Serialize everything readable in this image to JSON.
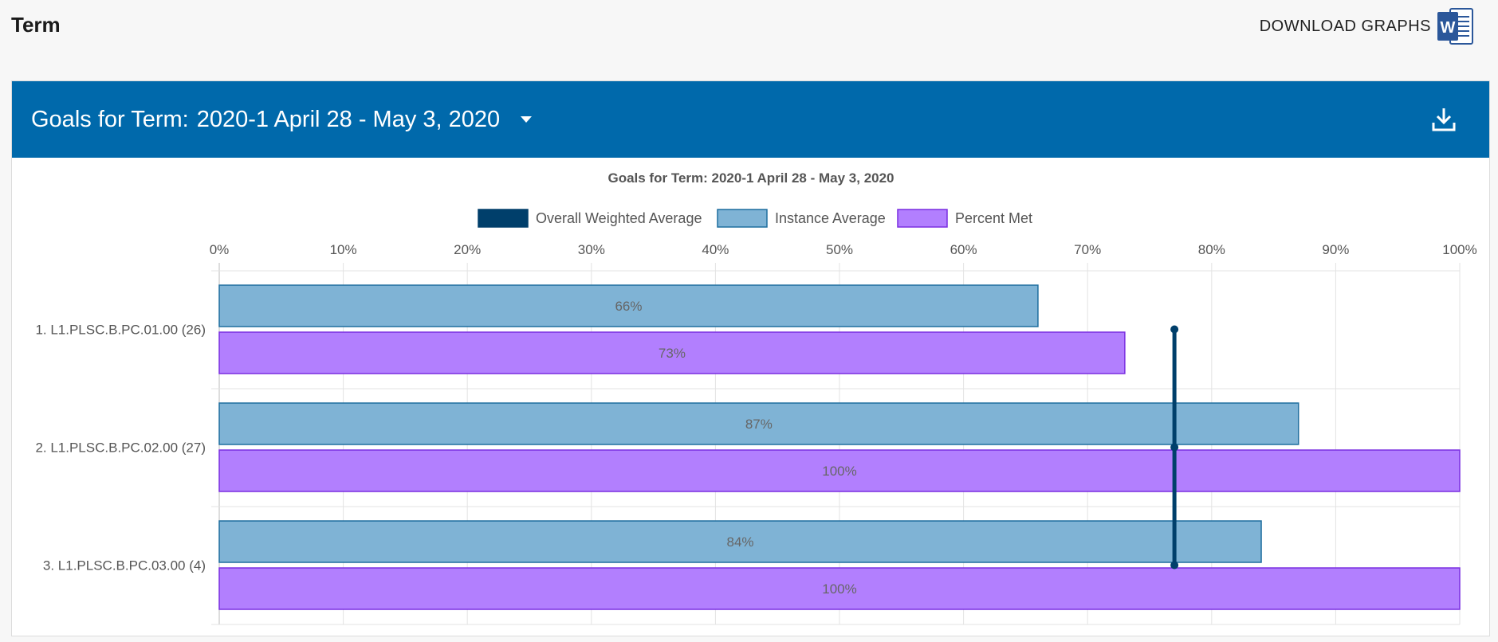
{
  "page": {
    "title": "Term",
    "download_label": "DOWNLOAD GRAPHS",
    "word_icon_letter": "W"
  },
  "panel": {
    "heading_prefix": "Goals for Term:",
    "selected_term": "2020-1 April 28 - May 3, 2020"
  },
  "icons": {
    "word": "word-document-icon",
    "caret": "caret-down-icon",
    "export": "download-icon"
  },
  "colors": {
    "header": "#0069ab",
    "overall": "#003f6b",
    "instance_fill": "#7fb3d5",
    "instance_border": "#1f6e9f",
    "percent_fill": "#b27ffe",
    "percent_border": "#7a2fe0"
  },
  "chart_data": {
    "type": "bar",
    "orientation": "horizontal",
    "title": "Goals for Term: 2020-1 April 28 - May 3,  2020",
    "legend_position": "top",
    "legend": [
      "Overall Weighted Average",
      "Instance Average",
      "Percent Met"
    ],
    "categories": [
      "1. L1.PLSC.B.PC.01.00 (26)",
      "2. L1.PLSC.B.PC.02.00 (27)",
      "3. L1.PLSC.B.PC.03.00 (4)"
    ],
    "series": [
      {
        "name": "Instance Average",
        "values": [
          66,
          87,
          84
        ],
        "labels": [
          "66%",
          "87%",
          "84%"
        ]
      },
      {
        "name": "Percent Met",
        "values": [
          73,
          100,
          100
        ],
        "labels": [
          "73%",
          "100%",
          "100%"
        ]
      }
    ],
    "overall_weighted_average": 77,
    "xlim": [
      0,
      100
    ],
    "xticks": [
      "0%",
      "10%",
      "20%",
      "30%",
      "40%",
      "50%",
      "60%",
      "70%",
      "80%",
      "90%",
      "100%"
    ],
    "grid": true
  }
}
